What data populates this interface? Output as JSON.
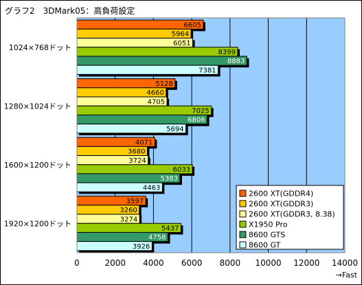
{
  "chart_data": {
    "type": "bar",
    "orientation": "horizontal",
    "title": "グラフ2　3DMark05：高負荷設定",
    "xlabel": "→Fast",
    "categories": [
      "1024×768ドット",
      "1280×1024ドット",
      "1600×1200ドット",
      "1920×1200ドット"
    ],
    "series": [
      {
        "name": "2600 XT(GDDR4)",
        "color": "#ff6600",
        "values": [
          6605,
          5128,
          4071,
          3597
        ]
      },
      {
        "name": "2600 XT(GDDR3)",
        "color": "#ffcc00",
        "values": [
          5964,
          4660,
          3680,
          3260
        ]
      },
      {
        "name": "2600 XT(GDDR3, 8.38)",
        "color": "#ffff99",
        "values": [
          6051,
          4705,
          3724,
          3274
        ]
      },
      {
        "name": "X1950 Pro",
        "color": "#99cc00",
        "values": [
          8399,
          7025,
          6033,
          5437
        ]
      },
      {
        "name": "8600 GTS",
        "color": "#339966",
        "values": [
          8883,
          6806,
          5383,
          4758
        ]
      },
      {
        "name": "8600 GT",
        "color": "#ccffff",
        "values": [
          7381,
          5694,
          4463,
          3926
        ]
      }
    ],
    "xlim": [
      0,
      14000
    ],
    "xticks": [
      0,
      2000,
      4000,
      6000,
      8000,
      10000,
      12000,
      14000
    ],
    "grid": true,
    "legend_position": "bottom-right",
    "plot_background": "#99ccff",
    "show_data_labels": true
  }
}
